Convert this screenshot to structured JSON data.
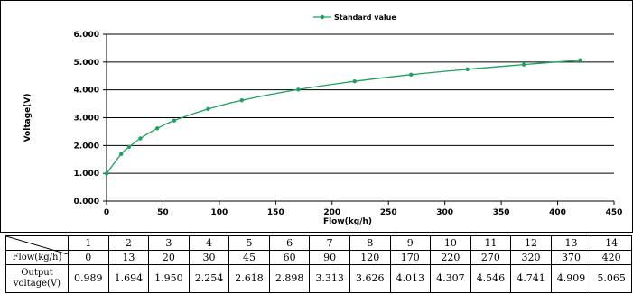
{
  "chart_data": {
    "type": "line",
    "legend": {
      "entries": [
        "Standard value"
      ],
      "position": "top-center"
    },
    "xlabel": "Flow(kg/h)",
    "ylabel": "Voltage(V)",
    "xlim": [
      0,
      450
    ],
    "ylim": [
      0,
      6
    ],
    "x_ticks": [
      "0",
      "50",
      "100",
      "150",
      "200",
      "250",
      "300",
      "350",
      "400",
      "450"
    ],
    "y_ticks": [
      "0.000",
      "1.000",
      "2.000",
      "3.000",
      "4.000",
      "5.000",
      "6.000"
    ],
    "grid": "horizontal",
    "series": [
      {
        "name": "Standard value",
        "color": "#1f9f60",
        "x": [
          0,
          13,
          20,
          30,
          45,
          60,
          90,
          120,
          170,
          220,
          270,
          320,
          370,
          420
        ],
        "y": [
          0.989,
          1.694,
          1.95,
          2.254,
          2.618,
          2.898,
          3.313,
          3.626,
          4.013,
          4.307,
          4.546,
          4.741,
          4.909,
          5.065
        ]
      }
    ]
  },
  "table": {
    "index_row": [
      "1",
      "2",
      "3",
      "4",
      "5",
      "6",
      "7",
      "8",
      "9",
      "10",
      "11",
      "12",
      "13",
      "14"
    ],
    "flow_label": "Flow(kg/h)",
    "flow_values": [
      "0",
      "13",
      "20",
      "30",
      "45",
      "60",
      "90",
      "120",
      "170",
      "220",
      "270",
      "320",
      "370",
      "420"
    ],
    "voltage_label_line1": "Output",
    "voltage_label_line2": "voltage(V)",
    "voltage_values": [
      "0.989",
      "1.694",
      "1.950",
      "2.254",
      "2.618",
      "2.898",
      "3.313",
      "3.626",
      "4.013",
      "4.307",
      "4.546",
      "4.741",
      "4.909",
      "5.065"
    ]
  }
}
